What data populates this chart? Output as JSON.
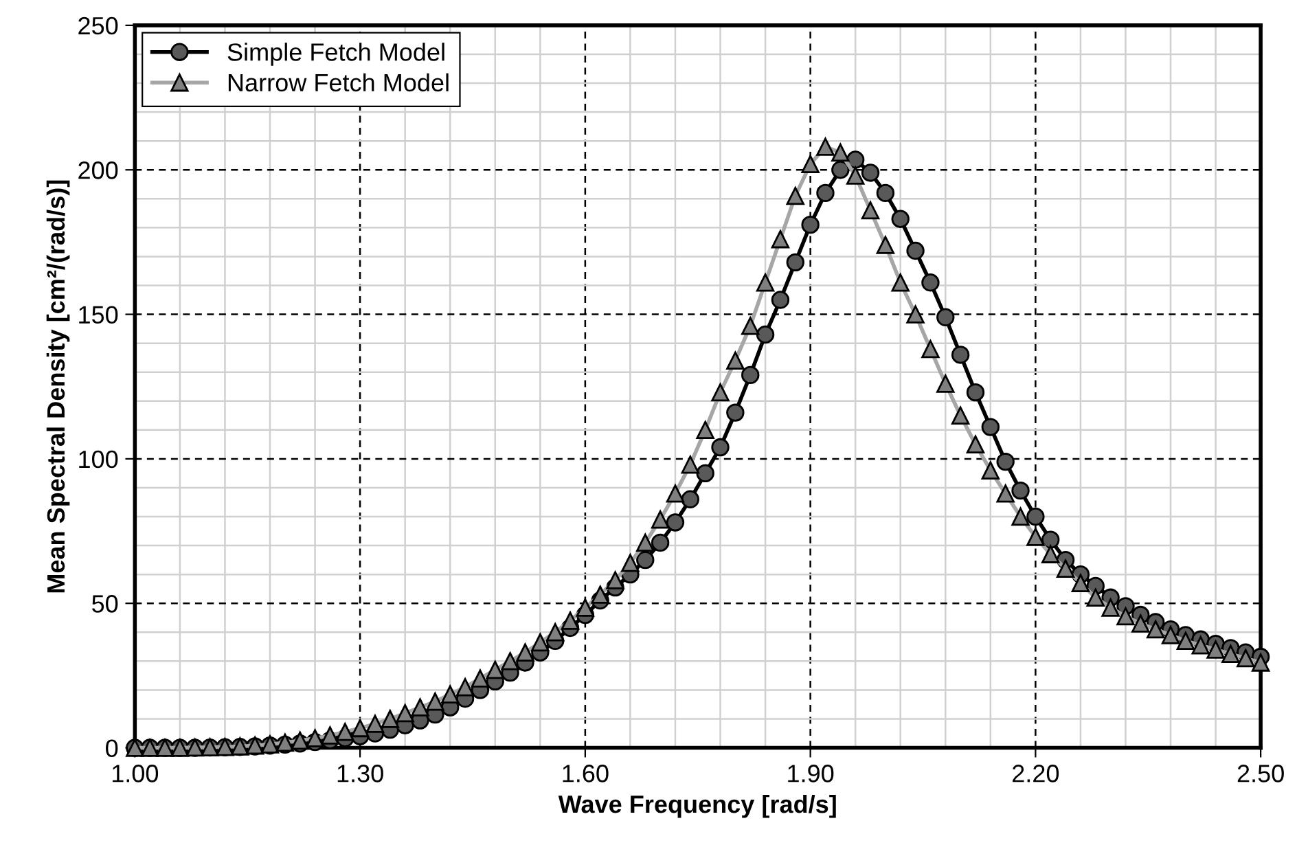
{
  "chart_data": {
    "type": "line",
    "xlabel": "Wave Frequency [rad/s]",
    "ylabel": "Mean Spectral Density [cm²/(rad/s)]",
    "x": [
      1.0,
      1.02,
      1.04,
      1.06,
      1.08,
      1.1,
      1.12,
      1.14,
      1.16,
      1.18,
      1.2,
      1.22,
      1.24,
      1.26,
      1.28,
      1.3,
      1.32,
      1.34,
      1.36,
      1.38,
      1.4,
      1.42,
      1.44,
      1.46,
      1.48,
      1.5,
      1.52,
      1.54,
      1.56,
      1.58,
      1.6,
      1.62,
      1.64,
      1.66,
      1.68,
      1.7,
      1.72,
      1.74,
      1.76,
      1.78,
      1.8,
      1.82,
      1.84,
      1.86,
      1.88,
      1.9,
      1.92,
      1.94,
      1.96,
      1.98,
      2.0,
      2.02,
      2.04,
      2.06,
      2.08,
      2.1,
      2.12,
      2.14,
      2.16,
      2.18,
      2.2,
      2.22,
      2.24,
      2.26,
      2.28,
      2.3,
      2.32,
      2.34,
      2.36,
      2.38,
      2.4,
      2.42,
      2.44,
      2.46,
      2.48,
      2.5
    ],
    "series": [
      {
        "name": "Simple Fetch Model",
        "color": "#595959",
        "marker": "circle",
        "values": [
          0,
          0,
          0,
          0,
          0,
          0.1,
          0.2,
          0.3,
          0.5,
          0.8,
          1.1,
          1.5,
          2,
          2.6,
          3.3,
          4,
          5,
          6.3,
          7.8,
          9.5,
          11.5,
          14,
          17,
          20,
          23,
          26,
          29.5,
          33,
          37,
          41.5,
          46,
          51,
          55.5,
          60,
          65,
          71,
          78,
          86,
          95,
          104,
          116,
          129,
          143,
          155,
          168,
          181,
          192,
          200,
          203.5,
          199,
          192,
          183,
          172,
          161,
          149,
          136,
          123,
          111,
          99,
          89,
          80,
          72,
          65,
          60,
          56,
          52,
          49,
          46,
          43.5,
          41,
          39,
          37.5,
          36,
          34.5,
          33,
          31.5
        ]
      },
      {
        "name": "Narrow Fetch Model",
        "color": "#7f7f7f",
        "marker": "triangle",
        "values": [
          0,
          0,
          0,
          0,
          0.1,
          0.2,
          0.3,
          0.5,
          0.8,
          1.2,
          1.8,
          2.5,
          3.3,
          4.3,
          5.5,
          6.8,
          8.3,
          10,
          12,
          14,
          16,
          18.5,
          21,
          24,
          27,
          30,
          33,
          36.5,
          40,
          44,
          48.5,
          53,
          58,
          64,
          71,
          79,
          88,
          98,
          110,
          123,
          134,
          146,
          161,
          176,
          191,
          202,
          208,
          206,
          198,
          186,
          174,
          161,
          150,
          138,
          126,
          115,
          105,
          96,
          88,
          80,
          73,
          67,
          62,
          57,
          52,
          48.5,
          45.5,
          43,
          41,
          39,
          37,
          35.5,
          34,
          32.5,
          31,
          29.5
        ]
      }
    ],
    "xlim": [
      1.0,
      2.5
    ],
    "ylim": [
      0,
      250
    ],
    "xticks": [
      {
        "value": 1.0,
        "label": "1.00"
      },
      {
        "value": 1.3,
        "label": "1.30"
      },
      {
        "value": 1.6,
        "label": "1.60"
      },
      {
        "value": 1.9,
        "label": "1.90"
      },
      {
        "value": 2.2,
        "label": "2.20"
      },
      {
        "value": 2.5,
        "label": "2.50"
      }
    ],
    "yticks": [
      0,
      50,
      100,
      150,
      200,
      250
    ],
    "grid": true,
    "legend": "top left",
    "line_style": "solid"
  }
}
